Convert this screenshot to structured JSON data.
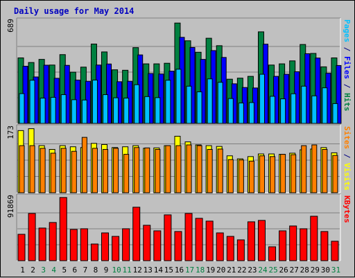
{
  "chart_data": {
    "type": "bar",
    "title": "Daily usage for May 2014",
    "days": [
      "1",
      "2",
      "3",
      "4",
      "5",
      "6",
      "7",
      "8",
      "9",
      "10",
      "11",
      "12",
      "13",
      "14",
      "15",
      "16",
      "17",
      "18",
      "19",
      "20",
      "21",
      "22",
      "23",
      "24",
      "25",
      "26",
      "27",
      "28",
      "29",
      "30",
      "31"
    ],
    "weekend_days": [
      "3",
      "4",
      "10",
      "11",
      "17",
      "18",
      "24",
      "25",
      "31"
    ],
    "panels": [
      {
        "id": "hits",
        "max_label": "689",
        "ymax": 689,
        "axis_label_parts": [
          {
            "text": "Pages",
            "color": "#00c0ff"
          },
          {
            "text": " / ",
            "color": "#000080"
          },
          {
            "text": "Files",
            "color": "#0000ff"
          },
          {
            "text": " / ",
            "color": "#000080"
          },
          {
            "text": "Hits",
            "color": "#008040"
          }
        ],
        "series": [
          {
            "name": "Hits",
            "color": "#008040",
            "values": [
              440,
              409,
              430,
              392,
              462,
              344,
              378,
              533,
              480,
              360,
              357,
              509,
              400,
              400,
              404,
              674,
              555,
              478,
              572,
              522,
              297,
              304,
              316,
              615,
              392,
              400,
              420,
              530,
              470,
              380,
              440
            ]
          },
          {
            "name": "Files",
            "color": "#0000ff",
            "values": [
              384,
              312,
              391,
              303,
              390,
              291,
              283,
              392,
              399,
              280,
              283,
              460,
              335,
              332,
              351,
              578,
              510,
              430,
              489,
              443,
              266,
              241,
              238,
              532,
              316,
              330,
              347,
              468,
              439,
              337,
              389
            ]
          },
          {
            "name": "Pages",
            "color": "#00c0ff",
            "values": [
              200,
              290,
              170,
              175,
              193,
              159,
              157,
              291,
              193,
              172,
              170,
              260,
              180,
              173,
              290,
              364,
              250,
              212,
              299,
              276,
              167,
              137,
              140,
              330,
              182,
              165,
              199,
              250,
              185,
              239,
              133
            ]
          }
        ]
      },
      {
        "id": "visits",
        "max_label": "173",
        "ymax": 173,
        "axis_label_parts": [
          {
            "text": "Sites",
            "color": "#ff8000"
          },
          {
            "text": " / ",
            "color": "#000080"
          },
          {
            "text": "Visits",
            "color": "#ffff00"
          }
        ],
        "series": [
          {
            "name": "Visits",
            "color": "#ffff00",
            "values": [
              165,
              170,
              125,
              115,
              125,
              122,
              120,
              131,
              128,
              120,
              122,
              125,
              118,
              119,
              125,
              150,
              135,
              127,
              125,
              123,
              98,
              90,
              96,
              103,
              103,
              102,
              105,
              114,
              116,
              120,
              106
            ]
          },
          {
            "name": "Sites",
            "color": "#ff8000",
            "values": [
              125,
              125,
              118,
              105,
              118,
              110,
              147,
              118,
              115,
              118,
              102,
              120,
              119,
              115,
              125,
              125,
              127,
              125,
              115,
              116,
              88,
              87,
              84,
              98,
              96,
              102,
              101,
              125,
              127,
              115,
              99
            ]
          }
        ]
      },
      {
        "id": "kbytes",
        "max_label": "91869",
        "ymax": 91869,
        "axis_label_parts": [
          {
            "text": "KBytes",
            "color": "#ff0000"
          }
        ],
        "series": [
          {
            "name": "KBytes",
            "color": "#ff0000",
            "values": [
              38000,
              68000,
              47000,
              55000,
              91000,
              45000,
              46000,
              24000,
              40000,
              35000,
              46000,
              77000,
              51000,
              43000,
              66000,
              42000,
              68000,
              61000,
              57000,
              40000,
              35000,
              30000,
              56000,
              58000,
              20000,
              43000,
              50000,
              46000,
              64000,
              42000,
              28000
            ]
          }
        ]
      }
    ]
  }
}
